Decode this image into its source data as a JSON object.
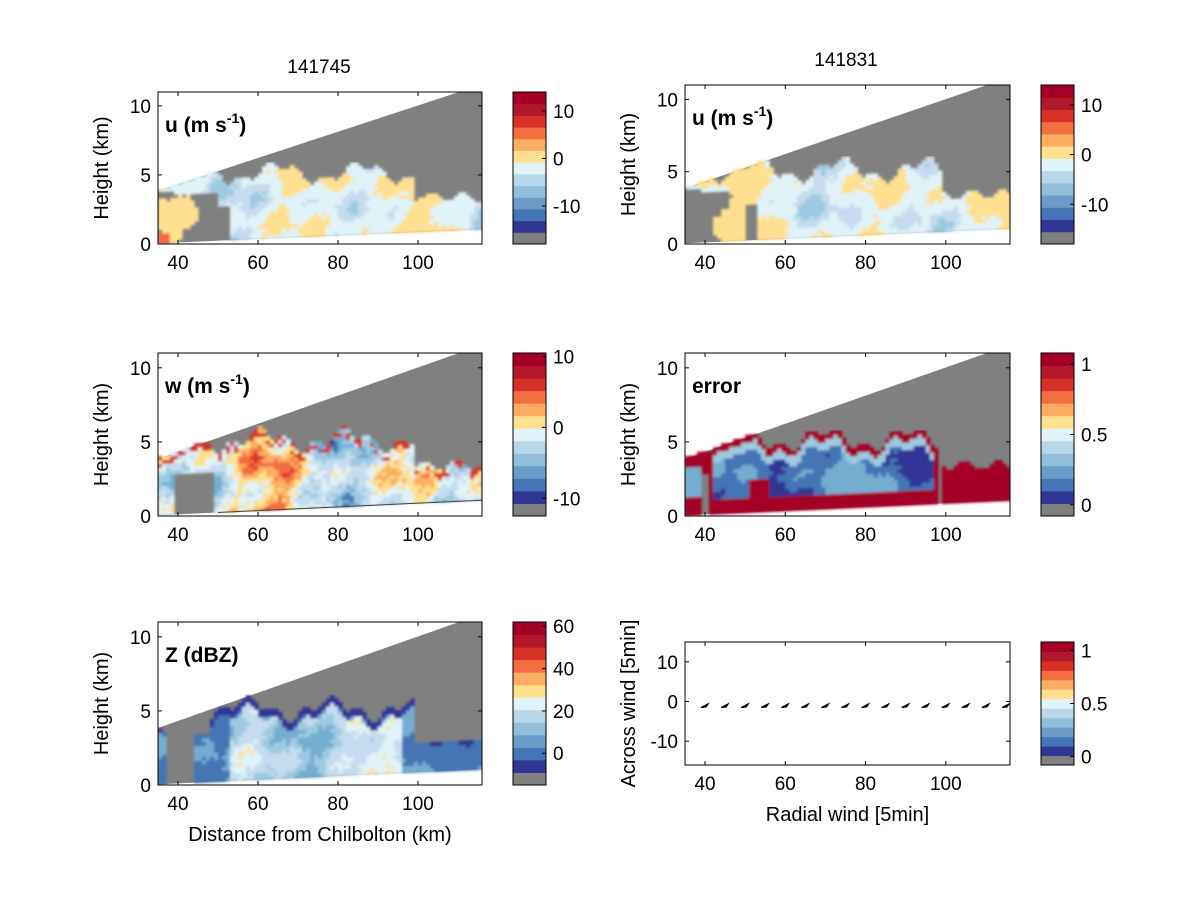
{
  "figure": {
    "titles": [
      "141745",
      "141831"
    ]
  },
  "chart_data": [
    {
      "id": "u-left",
      "type": "heatmap",
      "title": "141745",
      "panel_label": "u (m s",
      "panel_label_sup": "-1",
      "panel_label_tail": ")",
      "xlabel": "",
      "ylabel": "Height (km)",
      "xlim": [
        35,
        116
      ],
      "ylim": [
        0,
        11
      ],
      "xticks": [
        40,
        60,
        80,
        100
      ],
      "yticks": [
        0,
        5,
        10
      ],
      "field": "u",
      "colorbar": {
        "ticks": [
          {
            "v": 10,
            "label": "10"
          },
          {
            "v": 0,
            "label": "0"
          },
          {
            "v": -10,
            "label": "-10"
          }
        ],
        "range": [
          -18,
          14
        ]
      }
    },
    {
      "id": "u-right",
      "type": "heatmap",
      "title": "141831",
      "panel_label": "u (m s",
      "panel_label_sup": "-1",
      "panel_label_tail": ")",
      "xlabel": "",
      "ylabel": "Height (km)",
      "xlim": [
        35,
        116
      ],
      "ylim": [
        0,
        11
      ],
      "xticks": [
        40,
        60,
        80,
        100
      ],
      "yticks": [
        0,
        5,
        10
      ],
      "field": "u",
      "colorbar": {
        "ticks": [
          {
            "v": 10,
            "label": "10"
          },
          {
            "v": 0,
            "label": "0"
          },
          {
            "v": -10,
            "label": "-10"
          }
        ],
        "range": [
          -18,
          14
        ]
      }
    },
    {
      "id": "w-left",
      "type": "heatmap",
      "title": "",
      "panel_label": "w (m s",
      "panel_label_sup": "-1",
      "panel_label_tail": ")",
      "xlabel": "",
      "ylabel": "Height (km)",
      "xlim": [
        35,
        116
      ],
      "ylim": [
        0,
        11
      ],
      "xticks": [
        40,
        60,
        80,
        100
      ],
      "yticks": [
        0,
        5,
        10
      ],
      "field": "w",
      "colorbar": {
        "ticks": [
          {
            "v": 10,
            "label": "10"
          },
          {
            "v": 0,
            "label": "0"
          },
          {
            "v": -10,
            "label": "-10"
          }
        ],
        "range": [
          -12.5,
          10.5
        ]
      }
    },
    {
      "id": "error-right",
      "type": "heatmap",
      "title": "",
      "panel_label": "error",
      "panel_label_sup": "",
      "panel_label_tail": "",
      "xlabel": "",
      "ylabel": "Height (km)",
      "xlim": [
        35,
        116
      ],
      "ylim": [
        0,
        11
      ],
      "xticks": [
        40,
        60,
        80,
        100
      ],
      "yticks": [
        0,
        5,
        10
      ],
      "field": "error",
      "colorbar": {
        "ticks": [
          {
            "v": 1,
            "label": "1"
          },
          {
            "v": 0.5,
            "label": "0.5"
          },
          {
            "v": 0,
            "label": "0"
          }
        ],
        "range": [
          -0.08,
          1.08
        ]
      }
    },
    {
      "id": "z-left",
      "type": "heatmap",
      "title": "",
      "panel_label": "Z (dBZ)",
      "panel_label_sup": "",
      "panel_label_tail": "",
      "xlabel": "Distance from Chilbolton (km)",
      "ylabel": "Height (km)",
      "xlim": [
        35,
        116
      ],
      "ylim": [
        0,
        11
      ],
      "xticks": [
        40,
        60,
        80,
        100
      ],
      "yticks": [
        0,
        5,
        10
      ],
      "field": "z",
      "colorbar": {
        "ticks": [
          {
            "v": 60,
            "label": "60"
          },
          {
            "v": 40,
            "label": "40"
          },
          {
            "v": 20,
            "label": "20"
          },
          {
            "v": 0,
            "label": "0"
          }
        ],
        "range": [
          -15,
          62
        ]
      }
    },
    {
      "id": "quiver-right",
      "type": "scatter",
      "title": "",
      "panel_label": "",
      "panel_label_sup": "",
      "panel_label_tail": "",
      "xlabel": "Radial wind [5min]",
      "ylabel": "Across wind [5min]",
      "xlim": [
        35,
        116
      ],
      "ylim": [
        -16,
        15
      ],
      "xticks": [
        40,
        60,
        80,
        100
      ],
      "yticks": [
        -10,
        0,
        10
      ],
      "field": "quiver",
      "points": [
        {
          "x": 40,
          "y": -1
        },
        {
          "x": 45,
          "y": -1
        },
        {
          "x": 50,
          "y": -1
        },
        {
          "x": 55,
          "y": -1
        },
        {
          "x": 60,
          "y": -1
        },
        {
          "x": 65,
          "y": -1
        },
        {
          "x": 70,
          "y": -1
        },
        {
          "x": 75,
          "y": -1
        },
        {
          "x": 80,
          "y": -1
        },
        {
          "x": 85,
          "y": -1
        },
        {
          "x": 90,
          "y": -1
        },
        {
          "x": 95,
          "y": -1
        },
        {
          "x": 100,
          "y": -1
        },
        {
          "x": 105,
          "y": -1
        },
        {
          "x": 110,
          "y": -1
        },
        {
          "x": 115,
          "y": -1
        }
      ],
      "colorbar": {
        "ticks": [
          {
            "v": 1,
            "label": "1"
          },
          {
            "v": 0.5,
            "label": "0.5"
          },
          {
            "v": 0,
            "label": "0"
          }
        ],
        "range": [
          -0.08,
          1.08
        ]
      }
    }
  ],
  "colors": {
    "palette": [
      "#313695",
      "#4575b4",
      "#74add1",
      "#9ecae1",
      "#c6dbef",
      "#e0f3f8",
      "#fee090",
      "#fdae61",
      "#f46d43",
      "#d73027",
      "#a50026"
    ],
    "nodata": "#808080",
    "cbar_palette": [
      "#808080",
      "#313695",
      "#4575b4",
      "#6b9bc8",
      "#91bfdb",
      "#b8d7ea",
      "#e0f3f8",
      "#fee090",
      "#fdae61",
      "#f46d43",
      "#d73027",
      "#b2182b",
      "#a50026"
    ]
  }
}
